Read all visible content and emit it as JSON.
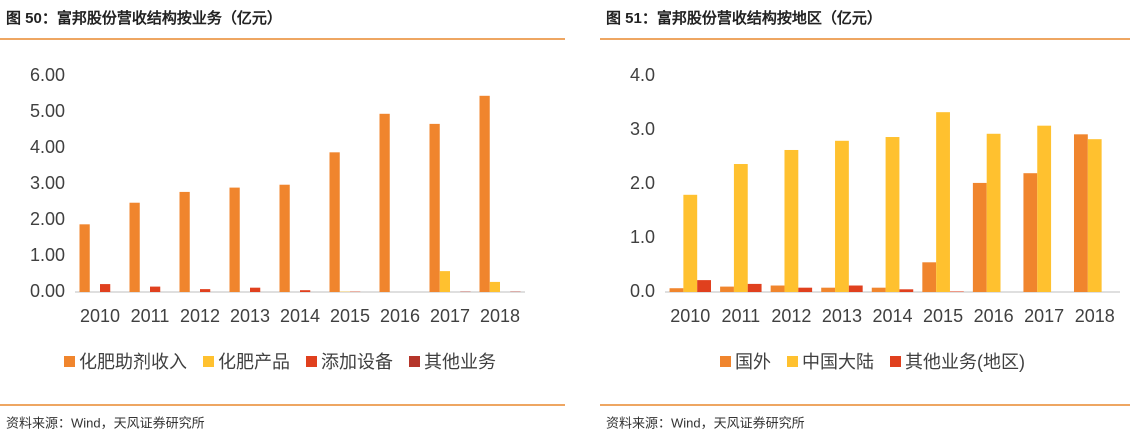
{
  "chart_data": [
    {
      "type": "bar",
      "title": "图 50：富邦股份营收结构按业务（亿元）",
      "source": "资料来源：Wind，天风证券研究所",
      "categories": [
        "2010",
        "2011",
        "2012",
        "2013",
        "2014",
        "2015",
        "2016",
        "2017",
        "2018"
      ],
      "series": [
        {
          "name": "化肥助剂收入",
          "color": "#f0852d",
          "values": [
            1.88,
            2.48,
            2.78,
            2.9,
            2.98,
            3.88,
            4.95,
            4.67,
            5.45
          ]
        },
        {
          "name": "化肥产品",
          "color": "#ffc12f",
          "values": [
            0,
            0,
            0,
            0,
            0,
            0.01,
            0,
            0.58,
            0.28
          ]
        },
        {
          "name": "添加设备",
          "color": "#e0401e",
          "values": [
            0.22,
            0.15,
            0.08,
            0.12,
            0.05,
            0.01,
            0,
            0,
            0
          ]
        },
        {
          "name": "其他业务",
          "color": "#b5352a",
          "values": [
            0,
            0,
            0,
            0,
            0,
            0,
            0,
            0.01,
            0.01
          ]
        }
      ],
      "ylim": [
        0,
        6
      ],
      "yticks": [
        {
          "value": 0,
          "label": "0.00"
        },
        {
          "value": 1,
          "label": "1.00"
        },
        {
          "value": 2,
          "label": "2.00"
        },
        {
          "value": 3,
          "label": "3.00"
        },
        {
          "value": 4,
          "label": "4.00"
        },
        {
          "value": 5,
          "label": "5.00"
        },
        {
          "value": 6,
          "label": "6.00"
        }
      ],
      "legend": "bottom"
    },
    {
      "type": "bar",
      "title": "图 51：富邦股份营收结构按地区（亿元）",
      "source": "资料来源：Wind，天风证券研究所",
      "categories": [
        "2010",
        "2011",
        "2012",
        "2013",
        "2014",
        "2015",
        "2016",
        "2017",
        "2018"
      ],
      "series": [
        {
          "name": "国外",
          "color": "#f0852d",
          "values": [
            0.07,
            0.1,
            0.12,
            0.08,
            0.08,
            0.55,
            2.02,
            2.2,
            2.92
          ]
        },
        {
          "name": "中国大陆",
          "color": "#ffc12f",
          "values": [
            1.8,
            2.37,
            2.63,
            2.8,
            2.87,
            3.33,
            2.93,
            3.08,
            2.83
          ]
        },
        {
          "name": "其他业务(地区)",
          "color": "#e0401e",
          "values": [
            0.22,
            0.15,
            0.08,
            0.12,
            0.05,
            0.01,
            0,
            0,
            0
          ]
        }
      ],
      "ylim": [
        0,
        4
      ],
      "yticks": [
        {
          "value": 0,
          "label": "0.0"
        },
        {
          "value": 1,
          "label": "1.0"
        },
        {
          "value": 2,
          "label": "2.0"
        },
        {
          "value": 3,
          "label": "3.0"
        },
        {
          "value": 4,
          "label": "4.0"
        }
      ],
      "legend": "bottom"
    }
  ]
}
